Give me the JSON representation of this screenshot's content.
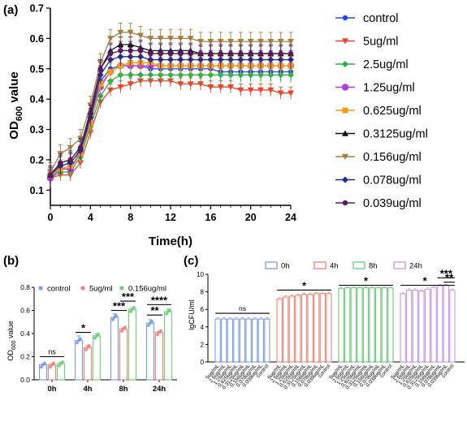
{
  "chart_data": [
    {
      "panel": "(a)",
      "type": "line",
      "xlabel": "Time(h)",
      "ylabel_main": "OD",
      "ylabel_sub": "600",
      "ylabel_tail": " value",
      "xlim": [
        0,
        24
      ],
      "ylim": [
        0.05,
        0.7
      ],
      "xticks": [
        0,
        4,
        8,
        12,
        16,
        20,
        24
      ],
      "yticks": [
        0.1,
        0.2,
        0.3,
        0.4,
        0.5,
        0.6,
        0.7
      ],
      "x": [
        0,
        1,
        2,
        3,
        4,
        5,
        6,
        7,
        8,
        9,
        10,
        11,
        12,
        13,
        14,
        15,
        16,
        17,
        18,
        19,
        20,
        21,
        22,
        23,
        24
      ],
      "series": [
        {
          "name": "control",
          "color": "#1f4fe0",
          "marker": "circle",
          "values": [
            0.14,
            0.17,
            0.17,
            0.23,
            0.33,
            0.46,
            0.5,
            0.51,
            0.51,
            0.51,
            0.5,
            0.5,
            0.5,
            0.5,
            0.5,
            0.5,
            0.5,
            0.49,
            0.49,
            0.49,
            0.49,
            0.49,
            0.49,
            0.49,
            0.49
          ],
          "err": 0.03
        },
        {
          "name": "5ug/ml",
          "color": "#e8462a",
          "marker": "triangle-down",
          "values": [
            0.14,
            0.15,
            0.15,
            0.19,
            0.29,
            0.39,
            0.43,
            0.44,
            0.45,
            0.46,
            0.46,
            0.46,
            0.46,
            0.45,
            0.45,
            0.45,
            0.44,
            0.44,
            0.44,
            0.43,
            0.43,
            0.43,
            0.43,
            0.42,
            0.42
          ],
          "err": 0.02
        },
        {
          "name": "2.5ug/ml",
          "color": "#1fb544",
          "marker": "diamond",
          "values": [
            0.14,
            0.16,
            0.16,
            0.21,
            0.31,
            0.41,
            0.46,
            0.48,
            0.48,
            0.48,
            0.48,
            0.48,
            0.48,
            0.48,
            0.48,
            0.48,
            0.48,
            0.48,
            0.48,
            0.48,
            0.48,
            0.48,
            0.48,
            0.48,
            0.48
          ],
          "err": 0.025
        },
        {
          "name": "1.25ug/ml",
          "color": "#b23cdc",
          "marker": "circle-large",
          "values": [
            0.14,
            0.17,
            0.17,
            0.22,
            0.32,
            0.44,
            0.49,
            0.51,
            0.51,
            0.51,
            0.51,
            0.51,
            0.51,
            0.51,
            0.51,
            0.51,
            0.51,
            0.51,
            0.51,
            0.51,
            0.51,
            0.51,
            0.51,
            0.51,
            0.51
          ],
          "err": 0.03
        },
        {
          "name": "0.625ug/ml",
          "color": "#f39a1e",
          "marker": "square",
          "values": [
            0.15,
            0.17,
            0.18,
            0.22,
            0.32,
            0.45,
            0.49,
            0.51,
            0.52,
            0.52,
            0.52,
            0.51,
            0.51,
            0.51,
            0.51,
            0.51,
            0.51,
            0.51,
            0.51,
            0.51,
            0.51,
            0.51,
            0.51,
            0.51,
            0.51
          ],
          "err": 0.03
        },
        {
          "name": "0.3125ug/ml",
          "color": "#111111",
          "marker": "triangle-up",
          "values": [
            0.15,
            0.19,
            0.2,
            0.24,
            0.36,
            0.5,
            0.56,
            0.58,
            0.58,
            0.57,
            0.56,
            0.56,
            0.56,
            0.56,
            0.56,
            0.55,
            0.55,
            0.55,
            0.55,
            0.55,
            0.55,
            0.55,
            0.55,
            0.55,
            0.55
          ],
          "err": 0.025
        },
        {
          "name": "0.156ug/ml",
          "color": "#a08040",
          "marker": "triangle-down",
          "values": [
            0.16,
            0.22,
            0.24,
            0.27,
            0.38,
            0.52,
            0.6,
            0.62,
            0.62,
            0.61,
            0.6,
            0.6,
            0.6,
            0.6,
            0.6,
            0.59,
            0.59,
            0.59,
            0.59,
            0.59,
            0.59,
            0.59,
            0.59,
            0.59,
            0.59
          ],
          "err": 0.03
        },
        {
          "name": "0.078ug/ml",
          "color": "#1a2c8e",
          "marker": "diamond",
          "values": [
            0.15,
            0.18,
            0.19,
            0.23,
            0.34,
            0.48,
            0.53,
            0.54,
            0.54,
            0.54,
            0.53,
            0.53,
            0.53,
            0.53,
            0.53,
            0.53,
            0.53,
            0.53,
            0.53,
            0.53,
            0.53,
            0.53,
            0.53,
            0.53,
            0.53
          ],
          "err": 0.03
        },
        {
          "name": "0.039ug/ml",
          "color": "#5a1a5a",
          "marker": "circle",
          "values": [
            0.15,
            0.19,
            0.2,
            0.24,
            0.35,
            0.5,
            0.55,
            0.56,
            0.56,
            0.56,
            0.55,
            0.55,
            0.55,
            0.55,
            0.55,
            0.55,
            0.55,
            0.55,
            0.55,
            0.55,
            0.55,
            0.55,
            0.55,
            0.55,
            0.55
          ],
          "err": 0.03
        }
      ]
    },
    {
      "panel": "(b)",
      "type": "bar",
      "ylabel_main": "OD",
      "ylabel_sub": "600",
      "ylabel_tail": " value",
      "ylim": [
        0,
        0.8
      ],
      "yticks": [
        0,
        0.2,
        0.4,
        0.6,
        0.8
      ],
      "ytick_labels": [
        "0.0",
        "0.2",
        "0.4",
        "0.6",
        "0.8"
      ],
      "categories": [
        "0h",
        "4h",
        "8h",
        "24h"
      ],
      "series": [
        {
          "name": "control",
          "color": "#7aa0e8",
          "values": [
            0.13,
            0.34,
            0.54,
            0.49
          ],
          "err": [
            0.01,
            0.04,
            0.03,
            0.03
          ]
        },
        {
          "name": "5ug/ml",
          "color": "#f0867a",
          "values": [
            0.13,
            0.28,
            0.44,
            0.41
          ],
          "err": [
            0.01,
            0.02,
            0.01,
            0.01
          ]
        },
        {
          "name": "0.156ug/ml",
          "color": "#6fcf7e",
          "values": [
            0.14,
            0.38,
            0.61,
            0.59
          ],
          "err": [
            0.01,
            0.02,
            0.01,
            0.02
          ]
        }
      ],
      "significance": [
        {
          "category": "0h",
          "pair": [
            0,
            2
          ],
          "label": "ns",
          "y": 0.2
        },
        {
          "category": "4h",
          "pair": [
            0,
            1
          ],
          "label": "*",
          "y": 0.41
        },
        {
          "category": "8h",
          "pair": [
            0,
            1
          ],
          "label": "***",
          "y": 0.6
        },
        {
          "category": "8h",
          "pair": [
            1,
            2
          ],
          "label": "***",
          "y": 0.68
        },
        {
          "category": "24h",
          "pair": [
            0,
            1
          ],
          "label": "**",
          "y": 0.56
        },
        {
          "category": "24h",
          "pair": [
            0,
            2
          ],
          "label": "****",
          "y": 0.65
        }
      ]
    },
    {
      "panel": "(c)",
      "type": "bar",
      "ylabel": "lgCFU/ml",
      "ylim": [
        0,
        10
      ],
      "yticks": [
        0,
        2,
        4,
        6,
        8,
        10
      ],
      "groups": [
        {
          "name": "0h",
          "color": "#6f95e6",
          "values": [
            4.9,
            4.9,
            4.9,
            4.9,
            4.9,
            4.9,
            4.9,
            4.9,
            4.9
          ]
        },
        {
          "name": "4h",
          "color": "#ee7868",
          "values": [
            7.2,
            7.4,
            7.5,
            7.6,
            7.7,
            7.7,
            7.8,
            7.8,
            7.8
          ]
        },
        {
          "name": "8h",
          "color": "#62c46e",
          "values": [
            8.4,
            8.45,
            8.45,
            8.45,
            8.45,
            8.45,
            8.45,
            8.45,
            8.45
          ]
        },
        {
          "name": "24h",
          "color": "#c58ee6",
          "values": [
            7.8,
            8.2,
            8.2,
            8.1,
            8.3,
            8.5,
            8.7,
            8.7,
            8.2
          ]
        }
      ],
      "categories": [
        "5ug/mL",
        "2.5ug/mL",
        "1.25ug/mL",
        "0.625ug/mL",
        "0.3125ug/mL",
        "0.156ug/mL",
        "0.078ug/mL",
        "0.039ug/mL",
        "control"
      ],
      "significance": [
        {
          "group": 0,
          "from": 0,
          "to": 8,
          "label": "ns",
          "y": 5.55
        },
        {
          "group": 1,
          "from": 0,
          "to": 8,
          "label": "*",
          "y": 8.2
        },
        {
          "group": 2,
          "from": 0,
          "to": 8,
          "label": "*",
          "y": 8.75
        },
        {
          "group": 3,
          "from": 0,
          "to": 8,
          "label": "*",
          "y": 8.75
        },
        {
          "group": 3,
          "from": 6,
          "to": 8,
          "label": "***",
          "y": 9.6
        },
        {
          "group": 3,
          "from": 7,
          "to": 8,
          "label": "**",
          "y": 9.1
        }
      ]
    }
  ]
}
